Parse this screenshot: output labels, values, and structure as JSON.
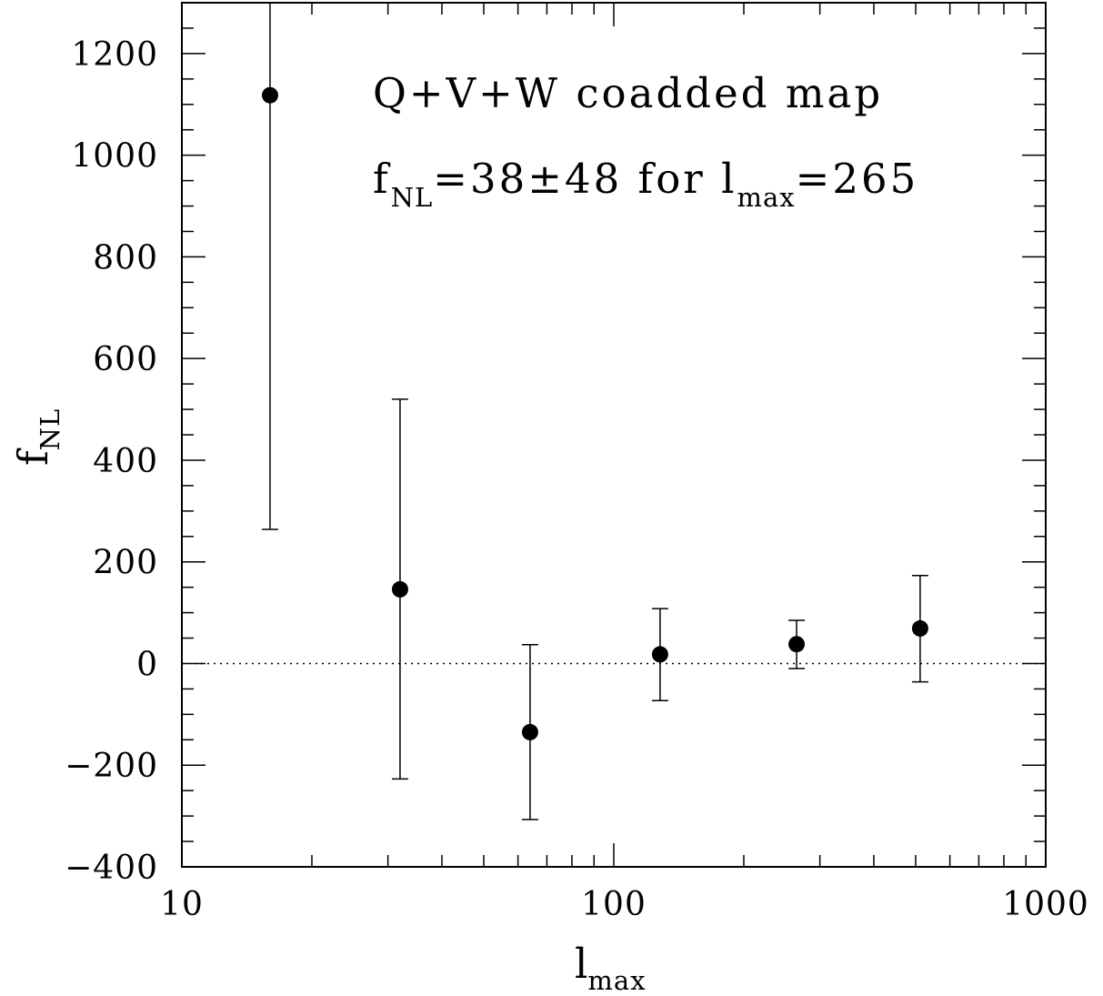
{
  "chart_data": {
    "type": "scatter",
    "x_scale": "log",
    "xlim": [
      10,
      1000
    ],
    "ylim": [
      -400,
      1300
    ],
    "xlabel": {
      "main": "l",
      "sub": "max"
    },
    "ylabel": {
      "main": "f",
      "sub": "NL"
    },
    "x_ticks": [
      10,
      100,
      1000
    ],
    "x_tick_labels": [
      "10",
      "100",
      "1000"
    ],
    "y_ticks": [
      -400,
      -200,
      0,
      200,
      400,
      600,
      800,
      1000,
      1200
    ],
    "y_tick_labels": [
      "−400",
      "−200",
      "0",
      "200",
      "400",
      "600",
      "800",
      "1000",
      "1200"
    ],
    "reference_line": {
      "y": 0,
      "style": "dotted"
    },
    "points": [
      {
        "x": 16,
        "y": 1118,
        "err_low": 264,
        "err_high": 1300
      },
      {
        "x": 32,
        "y": 146,
        "err_low": -227,
        "err_high": 520
      },
      {
        "x": 64,
        "y": -135,
        "err_low": -307,
        "err_high": 37
      },
      {
        "x": 128,
        "y": 18,
        "err_low": -73,
        "err_high": 108
      },
      {
        "x": 265,
        "y": 38,
        "err_low": -10,
        "err_high": 85
      },
      {
        "x": 512,
        "y": 69,
        "err_low": -36,
        "err_high": 173
      }
    ],
    "annotations": {
      "line1": "Q+V+W coadded map",
      "line2": {
        "a": "f",
        "a_sub": "NL",
        "b": "=38±48 for l",
        "b_sub": "max",
        "c": "=265"
      }
    }
  }
}
